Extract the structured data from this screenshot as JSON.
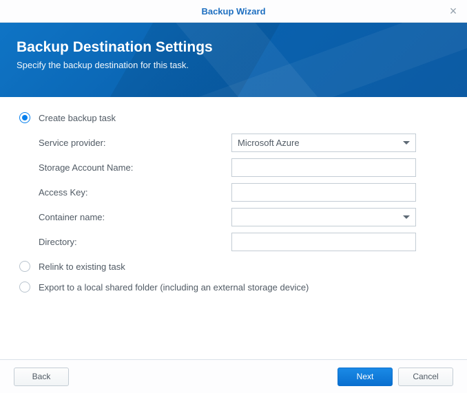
{
  "window": {
    "title": "Backup Wizard"
  },
  "banner": {
    "heading": "Backup Destination Settings",
    "subtitle": "Specify the backup destination for this task."
  },
  "options": {
    "create": {
      "label": "Create backup task",
      "checked": true
    },
    "relink": {
      "label": "Relink to existing task",
      "checked": false
    },
    "export": {
      "label": "Export to a local shared folder (including an external storage device)",
      "checked": false
    }
  },
  "form": {
    "service_provider": {
      "label": "Service provider:",
      "value": "Microsoft Azure"
    },
    "storage_account": {
      "label": "Storage Account Name:",
      "value": ""
    },
    "access_key": {
      "label": "Access Key:",
      "value": ""
    },
    "container": {
      "label": "Container name:",
      "value": ""
    },
    "directory": {
      "label": "Directory:",
      "value": ""
    }
  },
  "footer": {
    "back": "Back",
    "next": "Next",
    "cancel": "Cancel"
  },
  "colors": {
    "accent": "#057fed",
    "banner_start": "#0f74c5",
    "banner_end": "#0d5ba3",
    "border": "#c3ccd4",
    "text": "#505a64"
  }
}
